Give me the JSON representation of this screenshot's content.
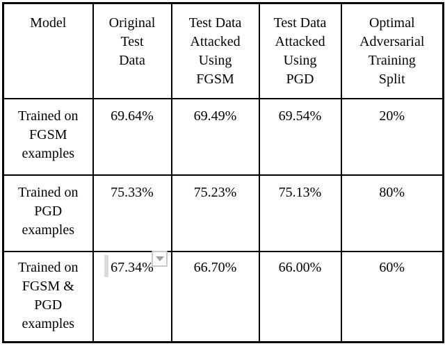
{
  "colors": {
    "border": "#000000",
    "text": "#000000",
    "background": "#ffffff",
    "dropdown_border": "#c9c9c9",
    "dropdown_bg": "#fbfbfb",
    "dropdown_arrow": "#9e9e9e",
    "caret_bar": "#dadada"
  },
  "table": {
    "columns": [
      {
        "label": "Model"
      },
      {
        "label": "Original\nTest\nData"
      },
      {
        "label": "Test Data\nAttacked\nUsing\nFGSM"
      },
      {
        "label": "Test Data\nAttacked\nUsing\nPGD"
      },
      {
        "label": "Optimal\nAdversarial\nTraining\nSplit"
      }
    ],
    "rows": [
      {
        "model": "Trained on\nFGSM\nexamples",
        "original_test_data": "69.64%",
        "fgsm_attacked": "69.49%",
        "pgd_attacked": "69.54%",
        "optimal_split": "20%"
      },
      {
        "model": "Trained on\nPGD\nexamples",
        "original_test_data": "75.33%",
        "fgsm_attacked": "75.23%",
        "pgd_attacked": "75.13%",
        "optimal_split": "80%"
      },
      {
        "model": "Trained on\nFGSM &\nPGD\nexamples",
        "original_test_data": "67.34%",
        "fgsm_attacked": "66.70%",
        "pgd_attacked": "66.00%",
        "optimal_split": "60%"
      }
    ]
  }
}
